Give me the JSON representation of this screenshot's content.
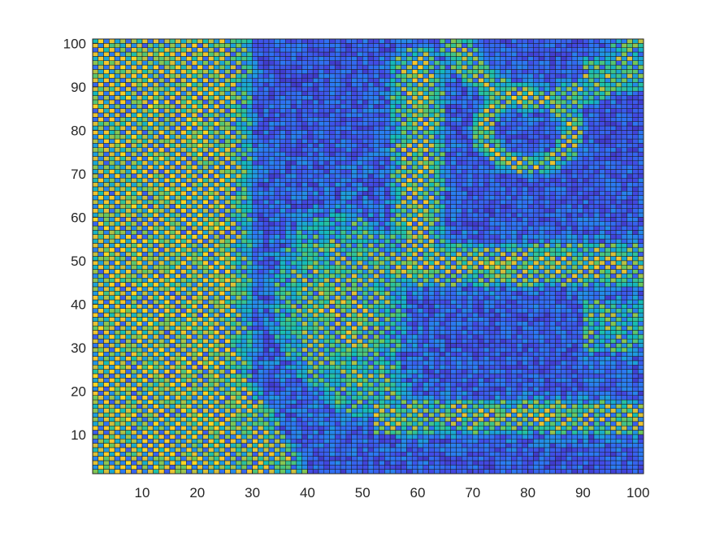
{
  "chart_data": {
    "type": "heatmap",
    "title": "",
    "xlabel": "",
    "ylabel": "",
    "grid_size": [
      101,
      101
    ],
    "xlim": [
      1,
      101
    ],
    "ylim": [
      1,
      101
    ],
    "x_ticks": [
      10,
      20,
      30,
      40,
      50,
      60,
      70,
      80,
      90,
      100
    ],
    "y_ticks": [
      10,
      20,
      30,
      40,
      50,
      60,
      70,
      80,
      90,
      100
    ],
    "x_tick_labels": [
      "10",
      "20",
      "30",
      "40",
      "50",
      "60",
      "70",
      "80",
      "90",
      "100"
    ],
    "y_tick_labels": [
      "10",
      "20",
      "30",
      "40",
      "50",
      "60",
      "70",
      "80",
      "90",
      "100"
    ],
    "colormap": "parula",
    "value_range": [
      0,
      1
    ],
    "colors": {
      "low": "#3e26a8",
      "mid_low": "#2f6ff0",
      "mid": "#1fb1c8",
      "mid_high": "#7bc94f",
      "high": "#f9d42a",
      "cell_edge": "#1a1a1a"
    },
    "grid": true,
    "legend": "none",
    "features": [
      {
        "name": "left-band",
        "x_range": [
          1,
          28
        ],
        "y_range": [
          1,
          101
        ],
        "intensity": "high"
      },
      {
        "name": "lower-left-wedge",
        "x_range": [
          20,
          36
        ],
        "y_range": [
          1,
          25
        ],
        "intensity": "high"
      },
      {
        "name": "center-blob",
        "x_range": [
          36,
          56
        ],
        "y_range": [
          15,
          60
        ],
        "intensity": "high"
      },
      {
        "name": "vertical-stem",
        "x_range": [
          55,
          66
        ],
        "y_range": [
          55,
          95
        ],
        "intensity": "high"
      },
      {
        "name": "ring",
        "center": [
          80,
          80
        ],
        "radius": 8,
        "intensity": "high"
      },
      {
        "name": "horizontal-band-upper",
        "x_range": [
          56,
          101
        ],
        "y_range": [
          44,
          55
        ],
        "intensity": "high"
      },
      {
        "name": "horizontal-band-lower",
        "x_range": [
          55,
          101
        ],
        "y_range": [
          11,
          18
        ],
        "intensity": "high"
      },
      {
        "name": "top-right-arc",
        "x_range": [
          62,
          101
        ],
        "y_range": [
          88,
          101
        ],
        "intensity": "medium-high"
      }
    ]
  }
}
